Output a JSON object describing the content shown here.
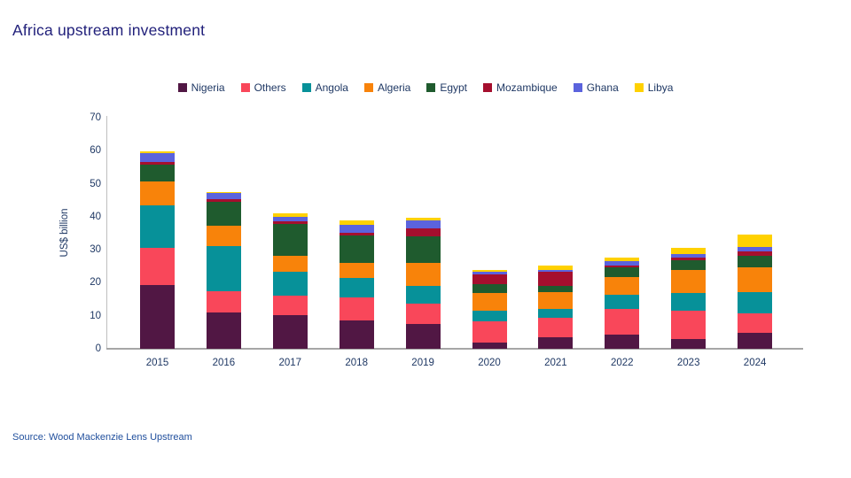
{
  "title": "Africa upstream investment",
  "source": "Source: Wood Mackenzie Lens Upstream",
  "chart_data": {
    "type": "bar",
    "stacked": true,
    "title": "Africa upstream investment",
    "ylabel": "US$ billion",
    "xlabel": "",
    "ylim": [
      0,
      70
    ],
    "yticks": [
      0,
      10,
      20,
      30,
      40,
      50,
      60,
      70
    ],
    "grid": false,
    "legend_position": "top",
    "categories": [
      "2015",
      "2016",
      "2017",
      "2018",
      "2019",
      "2020",
      "2021",
      "2022",
      "2023",
      "2024"
    ],
    "series": [
      {
        "name": "Nigeria",
        "color": "#511744",
        "values": [
          19.2,
          11.0,
          10.3,
          8.5,
          7.5,
          2.0,
          3.6,
          4.2,
          3.0,
          4.9
        ]
      },
      {
        "name": "Others",
        "color": "#f9475a",
        "values": [
          11.3,
          6.5,
          5.9,
          7.0,
          6.3,
          6.3,
          5.8,
          7.8,
          8.6,
          5.9
        ]
      },
      {
        "name": "Angola",
        "color": "#079199",
        "values": [
          13.0,
          13.5,
          7.1,
          6.0,
          5.2,
          3.3,
          2.7,
          4.3,
          5.4,
          6.5
        ]
      },
      {
        "name": "Algeria",
        "color": "#f8830a",
        "values": [
          7.3,
          6.4,
          5.0,
          4.6,
          7.0,
          5.2,
          5.0,
          5.5,
          7.0,
          7.3
        ]
      },
      {
        "name": "Egypt",
        "color": "#1f5b2e",
        "values": [
          5.0,
          7.2,
          9.5,
          8.2,
          8.2,
          2.7,
          2.0,
          2.8,
          2.9,
          3.6
        ]
      },
      {
        "name": "Mozambique",
        "color": "#a50f2e",
        "values": [
          0.8,
          0.7,
          0.8,
          0.9,
          2.4,
          3.1,
          4.3,
          0.6,
          0.7,
          1.2
        ]
      },
      {
        "name": "Ghana",
        "color": "#5b63dd",
        "values": [
          2.7,
          1.9,
          1.3,
          2.5,
          2.2,
          0.8,
          0.6,
          1.3,
          1.2,
          1.5
        ]
      },
      {
        "name": "Libya",
        "color": "#ffd100",
        "values": [
          0.5,
          0.4,
          1.1,
          1.1,
          0.8,
          0.5,
          1.1,
          1.1,
          1.7,
          3.6
        ]
      }
    ]
  }
}
